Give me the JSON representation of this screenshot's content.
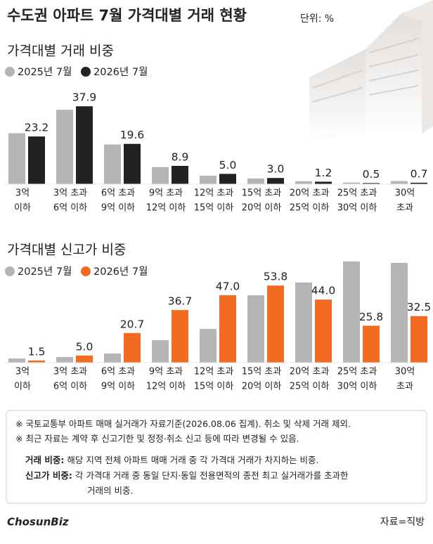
{
  "header": {
    "title": "수도권 아파트 7월 가격대별 거래 현황",
    "unit": "단위: %"
  },
  "chart_data": [
    {
      "type": "bar",
      "title": "가격대별 거래 비중",
      "categories": [
        [
          "3억",
          "이하"
        ],
        [
          "3억 초과",
          "6억 이하"
        ],
        [
          "6억 초과",
          "9억 이하"
        ],
        [
          "9억 초과",
          "12억 이하"
        ],
        [
          "12억 초과",
          "15억 이하"
        ],
        [
          "15억 초과",
          "20억 이하"
        ],
        [
          "20억 초과",
          "25억 이하"
        ],
        [
          "25억 초과",
          "30억 이하"
        ],
        [
          "30억",
          "초과"
        ]
      ],
      "series": [
        {
          "name": "2025년 7월",
          "color": "#b5b5b5",
          "values": [
            24.8,
            36.2,
            19.3,
            8.3,
            4.1,
            2.8,
            1.4,
            0.8,
            1.5
          ]
        },
        {
          "name": "2026년 7월",
          "color": "#222222",
          "values": [
            23.2,
            37.9,
            19.6,
            8.9,
            5.0,
            3.0,
            1.2,
            0.5,
            0.7
          ],
          "value_labels": [
            "23.2",
            "37.9",
            "19.6",
            "8.9",
            "5.0",
            "3.0",
            "1.2",
            "0.5",
            "0.7"
          ]
        }
      ],
      "ylim": [
        0,
        39
      ]
    },
    {
      "type": "bar",
      "title": "가격대별 신고가 비중",
      "categories": [
        [
          "3억",
          "이하"
        ],
        [
          "3억 초과",
          "6억 이하"
        ],
        [
          "6억 초과",
          "9억 이하"
        ],
        [
          "9억 초과",
          "12억 이하"
        ],
        [
          "12억 초과",
          "15억 이하"
        ],
        [
          "15억 초과",
          "20억 이하"
        ],
        [
          "20억 초과",
          "25억 이하"
        ],
        [
          "25억 초과",
          "30억 이하"
        ],
        [
          "30억",
          "초과"
        ]
      ],
      "series": [
        {
          "name": "2025년 7월",
          "color": "#b5b5b5",
          "values": [
            2.9,
            3.9,
            6.4,
            15.7,
            23.5,
            47.0,
            55.9,
            70.6,
            69.6
          ]
        },
        {
          "name": "2026년 7월",
          "color": "#f26b21",
          "values": [
            1.5,
            5.0,
            20.7,
            36.7,
            47.0,
            53.8,
            44.0,
            25.8,
            32.5
          ],
          "value_labels": [
            "1.5",
            "5.0",
            "20.7",
            "36.7",
            "47.0",
            "53.8",
            "44.0",
            "25.8",
            "32.5"
          ]
        }
      ],
      "ylim": [
        0,
        75
      ]
    }
  ],
  "notes": [
    "※ 국토교통부 아파트 매매 실거래가 자료기준(2026.08.06 집계). 취소 및 삭제 거래 제외.",
    "※ 최근 자료는 계약 후 신고기한 및 정정·취소 신고 등에 따라 변경될 수 있음."
  ],
  "definitions": [
    {
      "term": "거래 비중:",
      "lines": [
        "해당 지역 전체 아파트 매매 거래 중 각 가격대 거래가 차지하는 비중."
      ]
    },
    {
      "term": "신고가 비중:",
      "lines": [
        "각 가격대 거래 중 동일 단지·동일 전용면적의 종전 최고 실거래가를 초과한",
        "거래의 비중."
      ]
    }
  ],
  "logo": "ChosunBiz",
  "source": "자료=직방"
}
